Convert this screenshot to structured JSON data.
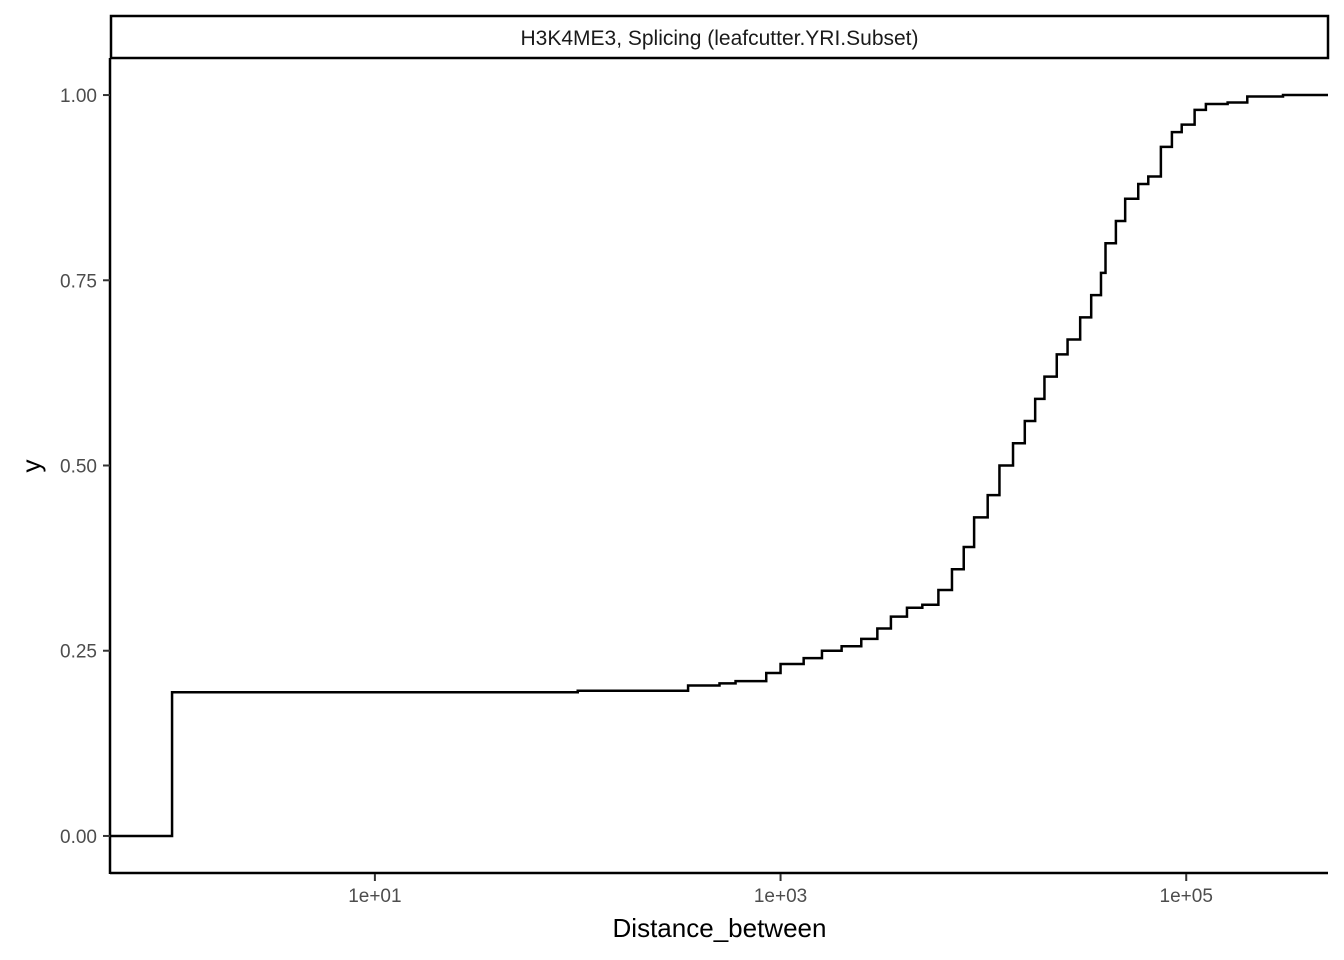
{
  "chart_data": {
    "type": "line",
    "subtype": "empirical cumulative distribution (step)",
    "facet_title": "H3K4ME3, Splicing (leafcutter.YRI.Subset)",
    "xlabel": "Distance_between",
    "ylabel": "y",
    "x_scale": "log10",
    "xlim": [
      0.5,
      500000
    ],
    "ylim": [
      -0.05,
      1.05
    ],
    "x_ticks": [
      {
        "value": 10,
        "label": "1e+01"
      },
      {
        "value": 1000,
        "label": "1e+03"
      },
      {
        "value": 100000,
        "label": "1e+05"
      }
    ],
    "y_ticks": [
      {
        "value": 0,
        "label": "0.00"
      },
      {
        "value": 0.25,
        "label": "0.25"
      },
      {
        "value": 0.5,
        "label": "0.50"
      },
      {
        "value": 0.75,
        "label": "0.75"
      },
      {
        "value": 1,
        "label": "1.00"
      }
    ],
    "grid": false,
    "legend": "none",
    "colors": {
      "line": "#000000",
      "axis": "#000000",
      "tick_text": "#4d4d4d"
    },
    "series": [
      {
        "points": [
          [
            0.5,
            0.0
          ],
          [
            1.0,
            0.0
          ],
          [
            1.0,
            0.194
          ],
          [
            100,
            0.196
          ],
          [
            350,
            0.203
          ],
          [
            500,
            0.206
          ],
          [
            600,
            0.209
          ],
          [
            850,
            0.22
          ],
          [
            1000,
            0.232
          ],
          [
            1300,
            0.24
          ],
          [
            1600,
            0.25
          ],
          [
            2000,
            0.256
          ],
          [
            2500,
            0.266
          ],
          [
            3000,
            0.28
          ],
          [
            3500,
            0.296
          ],
          [
            4200,
            0.308
          ],
          [
            5000,
            0.312
          ],
          [
            6000,
            0.332
          ],
          [
            7000,
            0.36
          ],
          [
            8000,
            0.39
          ],
          [
            9000,
            0.43
          ],
          [
            10500,
            0.46
          ],
          [
            12000,
            0.5
          ],
          [
            14000,
            0.53
          ],
          [
            16000,
            0.56
          ],
          [
            18000,
            0.59
          ],
          [
            20000,
            0.62
          ],
          [
            23000,
            0.65
          ],
          [
            26000,
            0.67
          ],
          [
            30000,
            0.7
          ],
          [
            34000,
            0.73
          ],
          [
            38000,
            0.76
          ],
          [
            40000,
            0.8
          ],
          [
            45000,
            0.83
          ],
          [
            50000,
            0.86
          ],
          [
            58000,
            0.88
          ],
          [
            65000,
            0.89
          ],
          [
            75000,
            0.93
          ],
          [
            85000,
            0.95
          ],
          [
            95000,
            0.96
          ],
          [
            110000,
            0.98
          ],
          [
            125000,
            0.988
          ],
          [
            160000,
            0.99
          ],
          [
            200000,
            0.998
          ],
          [
            300000,
            1.0
          ],
          [
            500000,
            1.0
          ]
        ]
      }
    ]
  }
}
